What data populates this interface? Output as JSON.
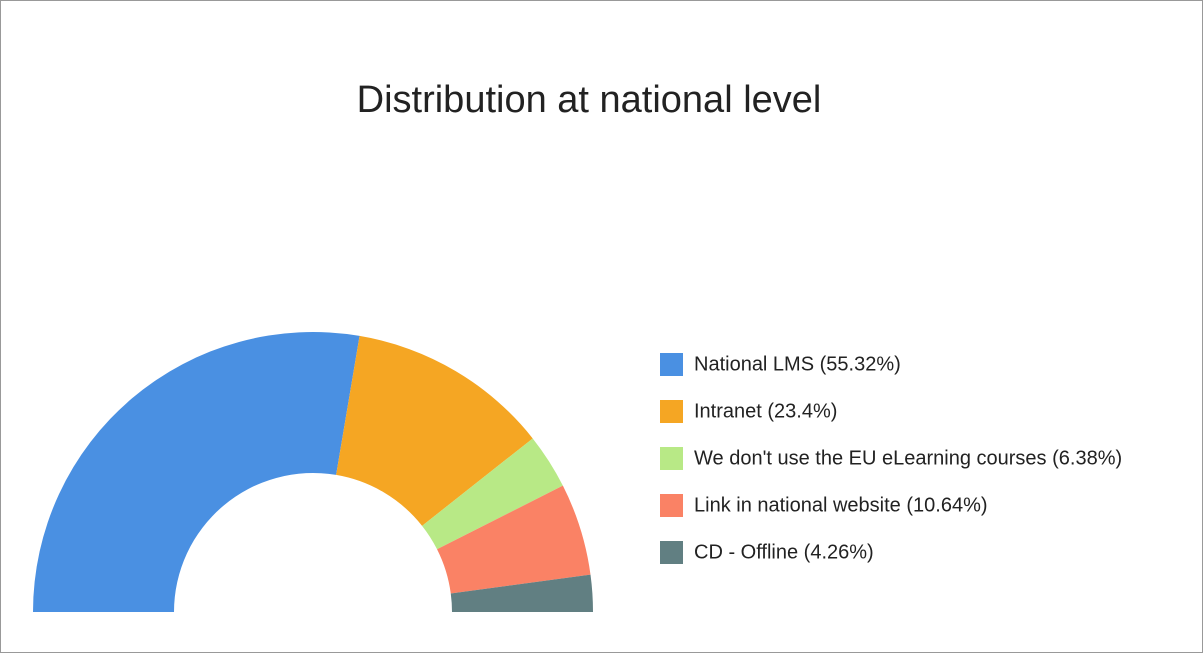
{
  "chart_data": {
    "type": "half-donut",
    "title": "Distribution at national level",
    "categories": [
      "National LMS (55.32%)",
      "Intranet (23.4%)",
      "We don't use the EU eLearning courses (6.38%)",
      "Link in national website (10.64%)",
      "CD - Offline (4.26%)"
    ],
    "values": [
      55.32,
      23.4,
      6.38,
      10.64,
      4.26
    ],
    "colors": [
      "#4a90e2",
      "#f5a623",
      "#b8e986",
      "#fa8265",
      "#617f82"
    ],
    "legend": "right"
  }
}
